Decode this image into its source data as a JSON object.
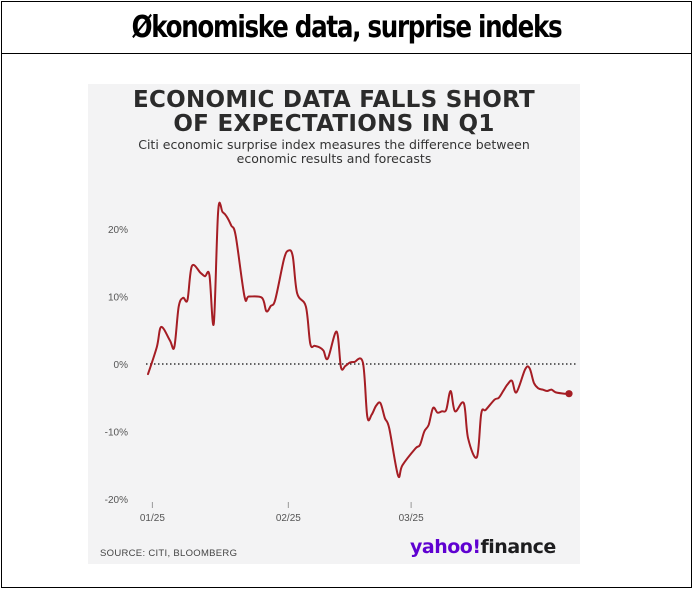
{
  "page": {
    "title": "Økonomiske data, surprise indeks"
  },
  "card": {
    "title_line1": "ECONOMIC DATA FALLS SHORT",
    "title_line2": "OF EXPECTATIONS IN Q1",
    "subtitle_line1": "Citi economic surprise index measures the difference between",
    "subtitle_line2": "economic results and forecasts",
    "source": "SOURCE: CITI, BLOOMBERG",
    "logo_brand": "yahoo!",
    "logo_product": "finance"
  },
  "colors": {
    "line": "#a51d24",
    "zero_line": "#333333",
    "axis_text": "#555555",
    "logo_purple": "#5f01d1"
  },
  "chart_data": {
    "type": "line",
    "title": "ECONOMIC DATA FALLS SHORT OF EXPECTATIONS IN Q1",
    "subtitle": "Citi economic surprise index measures the difference between economic results and forecasts",
    "xlabel": "",
    "ylabel": "",
    "y_ticks": [
      20,
      10,
      0,
      -10,
      -20
    ],
    "y_tick_labels": [
      "20%",
      "10%",
      "0%",
      "-10%",
      "-20%"
    ],
    "ylim": [
      -20,
      20
    ],
    "x_ticks": [
      "2025-01-01",
      "2025-02-01",
      "2025-03-01"
    ],
    "x_tick_labels": [
      "01/25",
      "02/25",
      "03/25"
    ],
    "zero_line": "dotted",
    "grid": false,
    "series": [
      {
        "x": [
          "2024-12-31",
          "2025-01-02",
          "2025-01-03",
          "2025-01-05",
          "2025-01-06",
          "2025-01-07",
          "2025-01-08",
          "2025-01-09",
          "2025-01-10",
          "2025-01-12",
          "2025-01-13",
          "2025-01-14",
          "2025-01-15",
          "2025-01-16",
          "2025-01-17",
          "2025-01-18",
          "2025-01-19",
          "2025-01-20",
          "2025-01-22",
          "2025-01-23",
          "2025-01-26",
          "2025-01-27",
          "2025-01-28",
          "2025-01-29",
          "2025-01-31",
          "2025-02-01",
          "2025-02-02",
          "2025-02-03",
          "2025-02-05",
          "2025-02-06",
          "2025-02-07",
          "2025-02-08",
          "2025-02-09",
          "2025-02-10",
          "2025-02-12",
          "2025-02-13",
          "2025-02-14",
          "2025-02-15",
          "2025-02-16",
          "2025-02-18",
          "2025-02-19",
          "2025-02-20",
          "2025-02-21",
          "2025-02-22",
          "2025-02-23",
          "2025-02-24",
          "2025-02-26",
          "2025-02-27",
          "2025-03-02",
          "2025-03-03",
          "2025-03-04",
          "2025-03-05",
          "2025-03-06",
          "2025-03-07",
          "2025-03-08",
          "2025-03-09",
          "2025-03-10",
          "2025-03-11",
          "2025-03-13",
          "2025-03-14",
          "2025-03-16",
          "2025-03-17",
          "2025-03-18",
          "2025-03-20",
          "2025-03-21",
          "2025-03-22",
          "2025-03-23",
          "2025-03-24",
          "2025-03-25",
          "2025-03-27",
          "2025-03-28",
          "2025-03-29",
          "2025-03-30",
          "2025-03-31",
          "2025-04-01",
          "2025-04-02",
          "2025-04-03",
          "2025-04-05",
          "2025-04-06"
        ],
        "values": [
          -1.5,
          2.5,
          5.5,
          3.5,
          2.5,
          8.5,
          9.8,
          9.5,
          14.5,
          13.5,
          13.0,
          13.2,
          6.0,
          22.7,
          22.5,
          21.8,
          20.5,
          19.0,
          10.0,
          10.0,
          9.8,
          7.8,
          8.6,
          9.5,
          15.5,
          16.8,
          16.0,
          10.5,
          8.5,
          3.0,
          2.7,
          2.5,
          2.0,
          0.8,
          4.8,
          -0.5,
          -0.3,
          0.2,
          0.3,
          0.2,
          -7.8,
          -7.5,
          -6.2,
          -5.8,
          -8.0,
          -9.5,
          -16.5,
          -15.0,
          -12.5,
          -12.0,
          -10.0,
          -9.0,
          -6.5,
          -7.2,
          -7.0,
          -6.8,
          -4.0,
          -7.0,
          -5.8,
          -11.0,
          -13.8,
          -7.3,
          -6.8,
          -5.3,
          -5.0,
          -4.0,
          -3.0,
          -2.5,
          -4.2,
          -0.8,
          -0.6,
          -2.8,
          -3.6,
          -3.8,
          -4.0,
          -3.8,
          -4.2,
          -4.4,
          -4.4
        ]
      }
    ],
    "last_point_marker": true
  }
}
